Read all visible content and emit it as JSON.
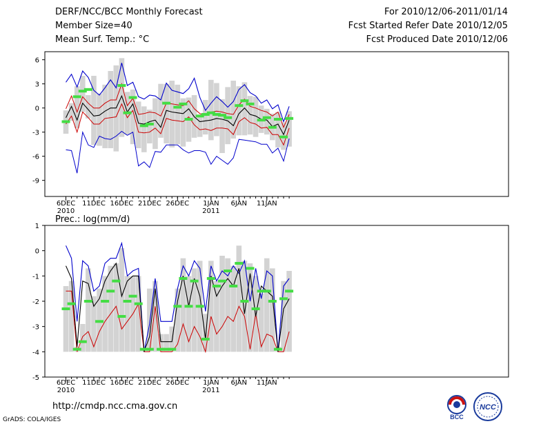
{
  "header": {
    "left": [
      "DERF/NCC/BCC Monthly Forecast",
      "Member Size=40",
      "Mean Surf. Temp.: °C"
    ],
    "right": [
      "For 2010/12/06-2011/01/14",
      "Fcst Started Refer Date 2010/12/05",
      "Fcst Produced Date 2010/12/06"
    ]
  },
  "footer": {
    "url": "http://cmdp.ncc.cma.gov.cn",
    "credit": "GrADS: COLA/IGES"
  },
  "logos": {
    "bcc": "BCC",
    "ncc": "NCC"
  },
  "colors": {
    "max": "#0000cc",
    "min": "#cc0000",
    "mean": "#000000",
    "obs": "#44dd44",
    "range": "#d3d3d3",
    "frame": "#000000"
  },
  "chart_data": [
    {
      "type": "line",
      "title": "Mean Surf. Temp.: °C",
      "x_tick_labels": [
        {
          "day": 0,
          "label": "6DEC",
          "sub": "2010"
        },
        {
          "day": 5,
          "label": "11DEC",
          "sub": ""
        },
        {
          "day": 10,
          "label": "16DEC",
          "sub": ""
        },
        {
          "day": 15,
          "label": "21DEC",
          "sub": ""
        },
        {
          "day": 20,
          "label": "26DEC",
          "sub": ""
        },
        {
          "day": 26,
          "label": "1JAN",
          "sub": "2011"
        },
        {
          "day": 31,
          "label": "6JAN",
          "sub": ""
        },
        {
          "day": 36,
          "label": "11JAN",
          "sub": ""
        }
      ],
      "ylim": [
        -11,
        7
      ],
      "y_ticks": [
        6,
        3,
        0,
        -3,
        -6,
        -9
      ],
      "series": [
        {
          "name": "max",
          "values": [
            3.2,
            4.2,
            2.6,
            4.6,
            3.8,
            2.2,
            1.6,
            2.5,
            3.5,
            2.5,
            5.6,
            2.8,
            3.2,
            1.4,
            1.1,
            1.6,
            1.5,
            1.0,
            3.1,
            2.2,
            2.0,
            1.8,
            2.4,
            3.7,
            1.3,
            -0.3,
            0.6,
            1.4,
            0.8,
            0.1,
            0.8,
            2.3,
            2.9,
            1.9,
            1.5,
            0.6,
            1.0,
            -0.1,
            0.4,
            -1.7,
            0.2
          ]
        },
        {
          "name": "upper",
          "values": [
            -0.1,
            1.5,
            -0.5,
            1.4,
            0.6,
            0.0,
            0.0,
            0.6,
            1.0,
            1.0,
            3.0,
            0.3,
            1.2,
            -0.8,
            -0.7,
            -0.5,
            -0.6,
            -1.0,
            0.6,
            0.5,
            0.4,
            0.3,
            0.9,
            -0.1,
            -0.7,
            -0.9,
            -0.5,
            -0.4,
            -0.5,
            -0.7,
            -0.8,
            0.4,
            1.1,
            0.2,
            0.0,
            -0.3,
            -0.5,
            -1.0,
            -0.5,
            -2.4,
            -0.8
          ]
        },
        {
          "name": "mean",
          "values": [
            -1.2,
            0.2,
            -1.5,
            0.6,
            -0.2,
            -1.0,
            -0.9,
            -0.4,
            0.0,
            0.0,
            1.5,
            -0.5,
            0.5,
            -1.9,
            -2.0,
            -1.7,
            -1.5,
            -2.4,
            -0.3,
            -0.5,
            -0.6,
            -0.7,
            -0.1,
            -1.1,
            -1.7,
            -1.6,
            -1.5,
            -1.3,
            -1.4,
            -1.6,
            -2.2,
            -0.7,
            0.0,
            -0.8,
            -1.0,
            -1.4,
            -1.5,
            -2.3,
            -2.0,
            -3.3,
            -1.5
          ]
        },
        {
          "name": "lower",
          "values": [
            -2.0,
            -1.0,
            -3.0,
            -0.5,
            -1.2,
            -2.0,
            -2.0,
            -1.3,
            -1.2,
            -1.1,
            0.5,
            -1.2,
            -0.3,
            -3.0,
            -3.1,
            -3.0,
            -2.5,
            -3.2,
            -1.3,
            -1.5,
            -1.6,
            -1.7,
            -1.1,
            -2.1,
            -2.7,
            -2.6,
            -2.8,
            -2.5,
            -2.5,
            -2.6,
            -3.3,
            -1.7,
            -1.2,
            -1.8,
            -2.0,
            -2.5,
            -2.4,
            -3.3,
            -3.3,
            -4.6,
            -2.5
          ]
        },
        {
          "name": "min",
          "values": [
            -5.2,
            -5.3,
            -8.1,
            -3.0,
            -4.6,
            -4.9,
            -3.5,
            -3.8,
            -3.9,
            -3.5,
            -2.9,
            -3.4,
            -3.0,
            -7.2,
            -6.7,
            -7.4,
            -5.4,
            -5.5,
            -4.6,
            -4.6,
            -4.6,
            -5.2,
            -5.6,
            -5.3,
            -5.3,
            -5.5,
            -7.0,
            -6.0,
            -6.5,
            -7.0,
            -6.2,
            -3.9,
            -4.0,
            -4.1,
            -4.2,
            -4.5,
            -4.5,
            -5.6,
            -5.0,
            -6.6,
            -3.8
          ]
        },
        {
          "name": "obs",
          "values": [
            -1.7,
            null,
            1.4,
            2.1,
            2.3,
            null,
            null,
            null,
            null,
            null,
            2.8,
            -0.6,
            1.3,
            null,
            -2.2,
            -2.0,
            null,
            null,
            0.6,
            null,
            0.1,
            0.5,
            -1.4,
            null,
            -1.0,
            -0.8,
            -0.6,
            -0.8,
            -0.9,
            -1.2,
            null,
            0.3,
            0.9,
            0.5,
            null,
            -1.5,
            -1.2,
            -2.4,
            -1.4,
            -3.6,
            -1.3
          ]
        },
        {
          "name": "range_top",
          "values": [
            -0.3,
            0.6,
            2.7,
            4.0,
            1.6,
            4.0,
            1.8,
            2.9,
            4.6,
            5.3,
            6.2,
            2.0,
            2.3,
            0.8,
            0.2,
            -0.2,
            1.2,
            3.0,
            3.0,
            3.4,
            2.9,
            1.2,
            1.3,
            1.6,
            -0.8,
            1.0,
            3.5,
            3.1,
            1.1,
            2.6,
            3.4,
            2.7,
            3.2,
            1.5,
            1.4,
            0.3,
            -0.1,
            -0.7,
            -0.5,
            -1.8,
            -0.4
          ]
        },
        {
          "name": "range_bottom",
          "values": [
            -3.2,
            -1.6,
            -2.5,
            -0.5,
            -1.3,
            -4.6,
            -4.7,
            -5.0,
            -5.0,
            -5.4,
            -3.6,
            -3.3,
            -4.5,
            -5.0,
            -5.5,
            -4.4,
            -5.1,
            -3.7,
            -4.4,
            -4.9,
            -4.5,
            -4.8,
            -4.2,
            -3.7,
            -3.6,
            -3.3,
            -4.0,
            -3.5,
            -5.6,
            -4.5,
            -3.8,
            -3.4,
            -3.4,
            -3.3,
            -3.6,
            -3.1,
            -3.3,
            -4.0,
            -4.9,
            -5.2,
            -4.8
          ]
        }
      ]
    },
    {
      "type": "line",
      "title": "Prec.: log(mm/d)",
      "x_tick_labels": [
        {
          "day": 0,
          "label": "6DEC",
          "sub": "2010"
        },
        {
          "day": 5,
          "label": "11DEC",
          "sub": ""
        },
        {
          "day": 10,
          "label": "16DEC",
          "sub": ""
        },
        {
          "day": 15,
          "label": "21DEC",
          "sub": ""
        },
        {
          "day": 20,
          "label": "26DEC",
          "sub": ""
        },
        {
          "day": 26,
          "label": "1JAN",
          "sub": "2011"
        },
        {
          "day": 31,
          "label": "6JAN",
          "sub": ""
        },
        {
          "day": 36,
          "label": "11JAN",
          "sub": ""
        }
      ],
      "ylim": [
        -5,
        1
      ],
      "y_ticks": [
        1,
        0,
        -1,
        -2,
        -3,
        -4,
        -5
      ],
      "series": [
        {
          "name": "max",
          "values": [
            0.2,
            -0.3,
            -2.8,
            -0.4,
            -0.6,
            -1.6,
            -1.4,
            -0.5,
            -0.3,
            -0.3,
            0.3,
            -1.0,
            -0.8,
            -0.7,
            -4.0,
            -2.9,
            -1.1,
            -2.8,
            -2.8,
            -2.8,
            -1.5,
            -0.6,
            -1.0,
            -0.4,
            -0.7,
            -2.4,
            -0.6,
            -1.2,
            -0.8,
            -1.0,
            -0.6,
            -0.9,
            -0.4,
            -2.0,
            -0.7,
            -1.9,
            -0.8,
            -1.0,
            -4.0,
            -1.4,
            -1.1
          ]
        },
        {
          "name": "mean",
          "values": [
            -0.6,
            -1.1,
            -3.8,
            -1.2,
            -1.3,
            -2.2,
            -1.9,
            -1.2,
            -0.8,
            -0.5,
            -1.8,
            -1.2,
            -1.0,
            -1.0,
            -4.0,
            -3.4,
            -1.5,
            -3.6,
            -3.6,
            -3.6,
            -2.0,
            -1.0,
            -2.2,
            -1.1,
            -1.8,
            -3.5,
            -1.0,
            -1.8,
            -1.4,
            -1.1,
            -1.4,
            -0.7,
            -2.5,
            -0.9,
            -2.6,
            -1.4,
            -1.6,
            -1.8,
            -4.0,
            -2.3,
            -1.9
          ]
        },
        {
          "name": "min",
          "values": [
            -1.6,
            -1.6,
            -4.0,
            -3.4,
            -3.2,
            -3.8,
            -3.2,
            -2.8,
            -2.5,
            -2.2,
            -3.1,
            -2.8,
            -2.5,
            -2.1,
            -4.0,
            -4.0,
            -2.2,
            -4.0,
            -4.0,
            -4.0,
            -3.7,
            -2.9,
            -3.6,
            -3.0,
            -3.4,
            -4.0,
            -2.6,
            -3.3,
            -3.0,
            -2.6,
            -2.8,
            -2.2,
            -2.6,
            -3.9,
            -2.5,
            -3.8,
            -3.3,
            -3.4,
            -4.0,
            -4.0,
            -3.2
          ]
        },
        {
          "name": "obs",
          "values": [
            -2.3,
            -2.1,
            -3.9,
            -3.6,
            -2.0,
            null,
            -2.8,
            -2.0,
            -1.6,
            -1.2,
            -2.6,
            -2.0,
            -1.8,
            -2.1,
            -3.9,
            -3.9,
            null,
            -3.9,
            -3.9,
            -3.9,
            -2.2,
            -1.1,
            -2.2,
            -1.2,
            -2.2,
            -3.5,
            -1.1,
            -1.4,
            -1.2,
            -0.8,
            -1.4,
            -0.5,
            -2.0,
            -0.7,
            -2.3,
            -1.6,
            -1.6,
            -2.0,
            -3.9,
            -1.9,
            -1.6
          ]
        },
        {
          "name": "range_top",
          "values": [
            -1.4,
            -1.2,
            -3.8,
            -2.9,
            -0.7,
            -1.8,
            -1.5,
            -1.0,
            -0.6,
            -0.5,
            0.1,
            -1.0,
            -1.0,
            -1.0,
            -3.9,
            -1.5,
            -1.2,
            -3.3,
            -3.3,
            -3.0,
            -1.5,
            -0.3,
            -1.0,
            -0.7,
            -0.4,
            -2.5,
            -0.4,
            -1.2,
            -0.2,
            -0.3,
            -0.6,
            0.2,
            -0.4,
            -0.5,
            -1.0,
            -1.7,
            -0.3,
            -0.7,
            -3.8,
            -1.2,
            -0.8
          ]
        },
        {
          "name": "range_bottom",
          "values": [
            -4.0,
            -4.0,
            -4.0,
            -4.0,
            -4.0,
            -4.0,
            -4.0,
            -4.0,
            -4.0,
            -4.0,
            -4.0,
            -4.0,
            -4.0,
            -4.0,
            -4.0,
            -4.0,
            -4.0,
            -4.0,
            -4.0,
            -4.0,
            -4.0,
            -4.0,
            -4.0,
            -4.0,
            -4.0,
            -4.0,
            -4.0,
            -4.0,
            -4.0,
            -4.0,
            -4.0,
            -4.0,
            -4.0,
            -4.0,
            -4.0,
            -4.0,
            -4.0,
            -4.0,
            -4.0,
            -4.0,
            -4.0
          ]
        }
      ]
    }
  ]
}
